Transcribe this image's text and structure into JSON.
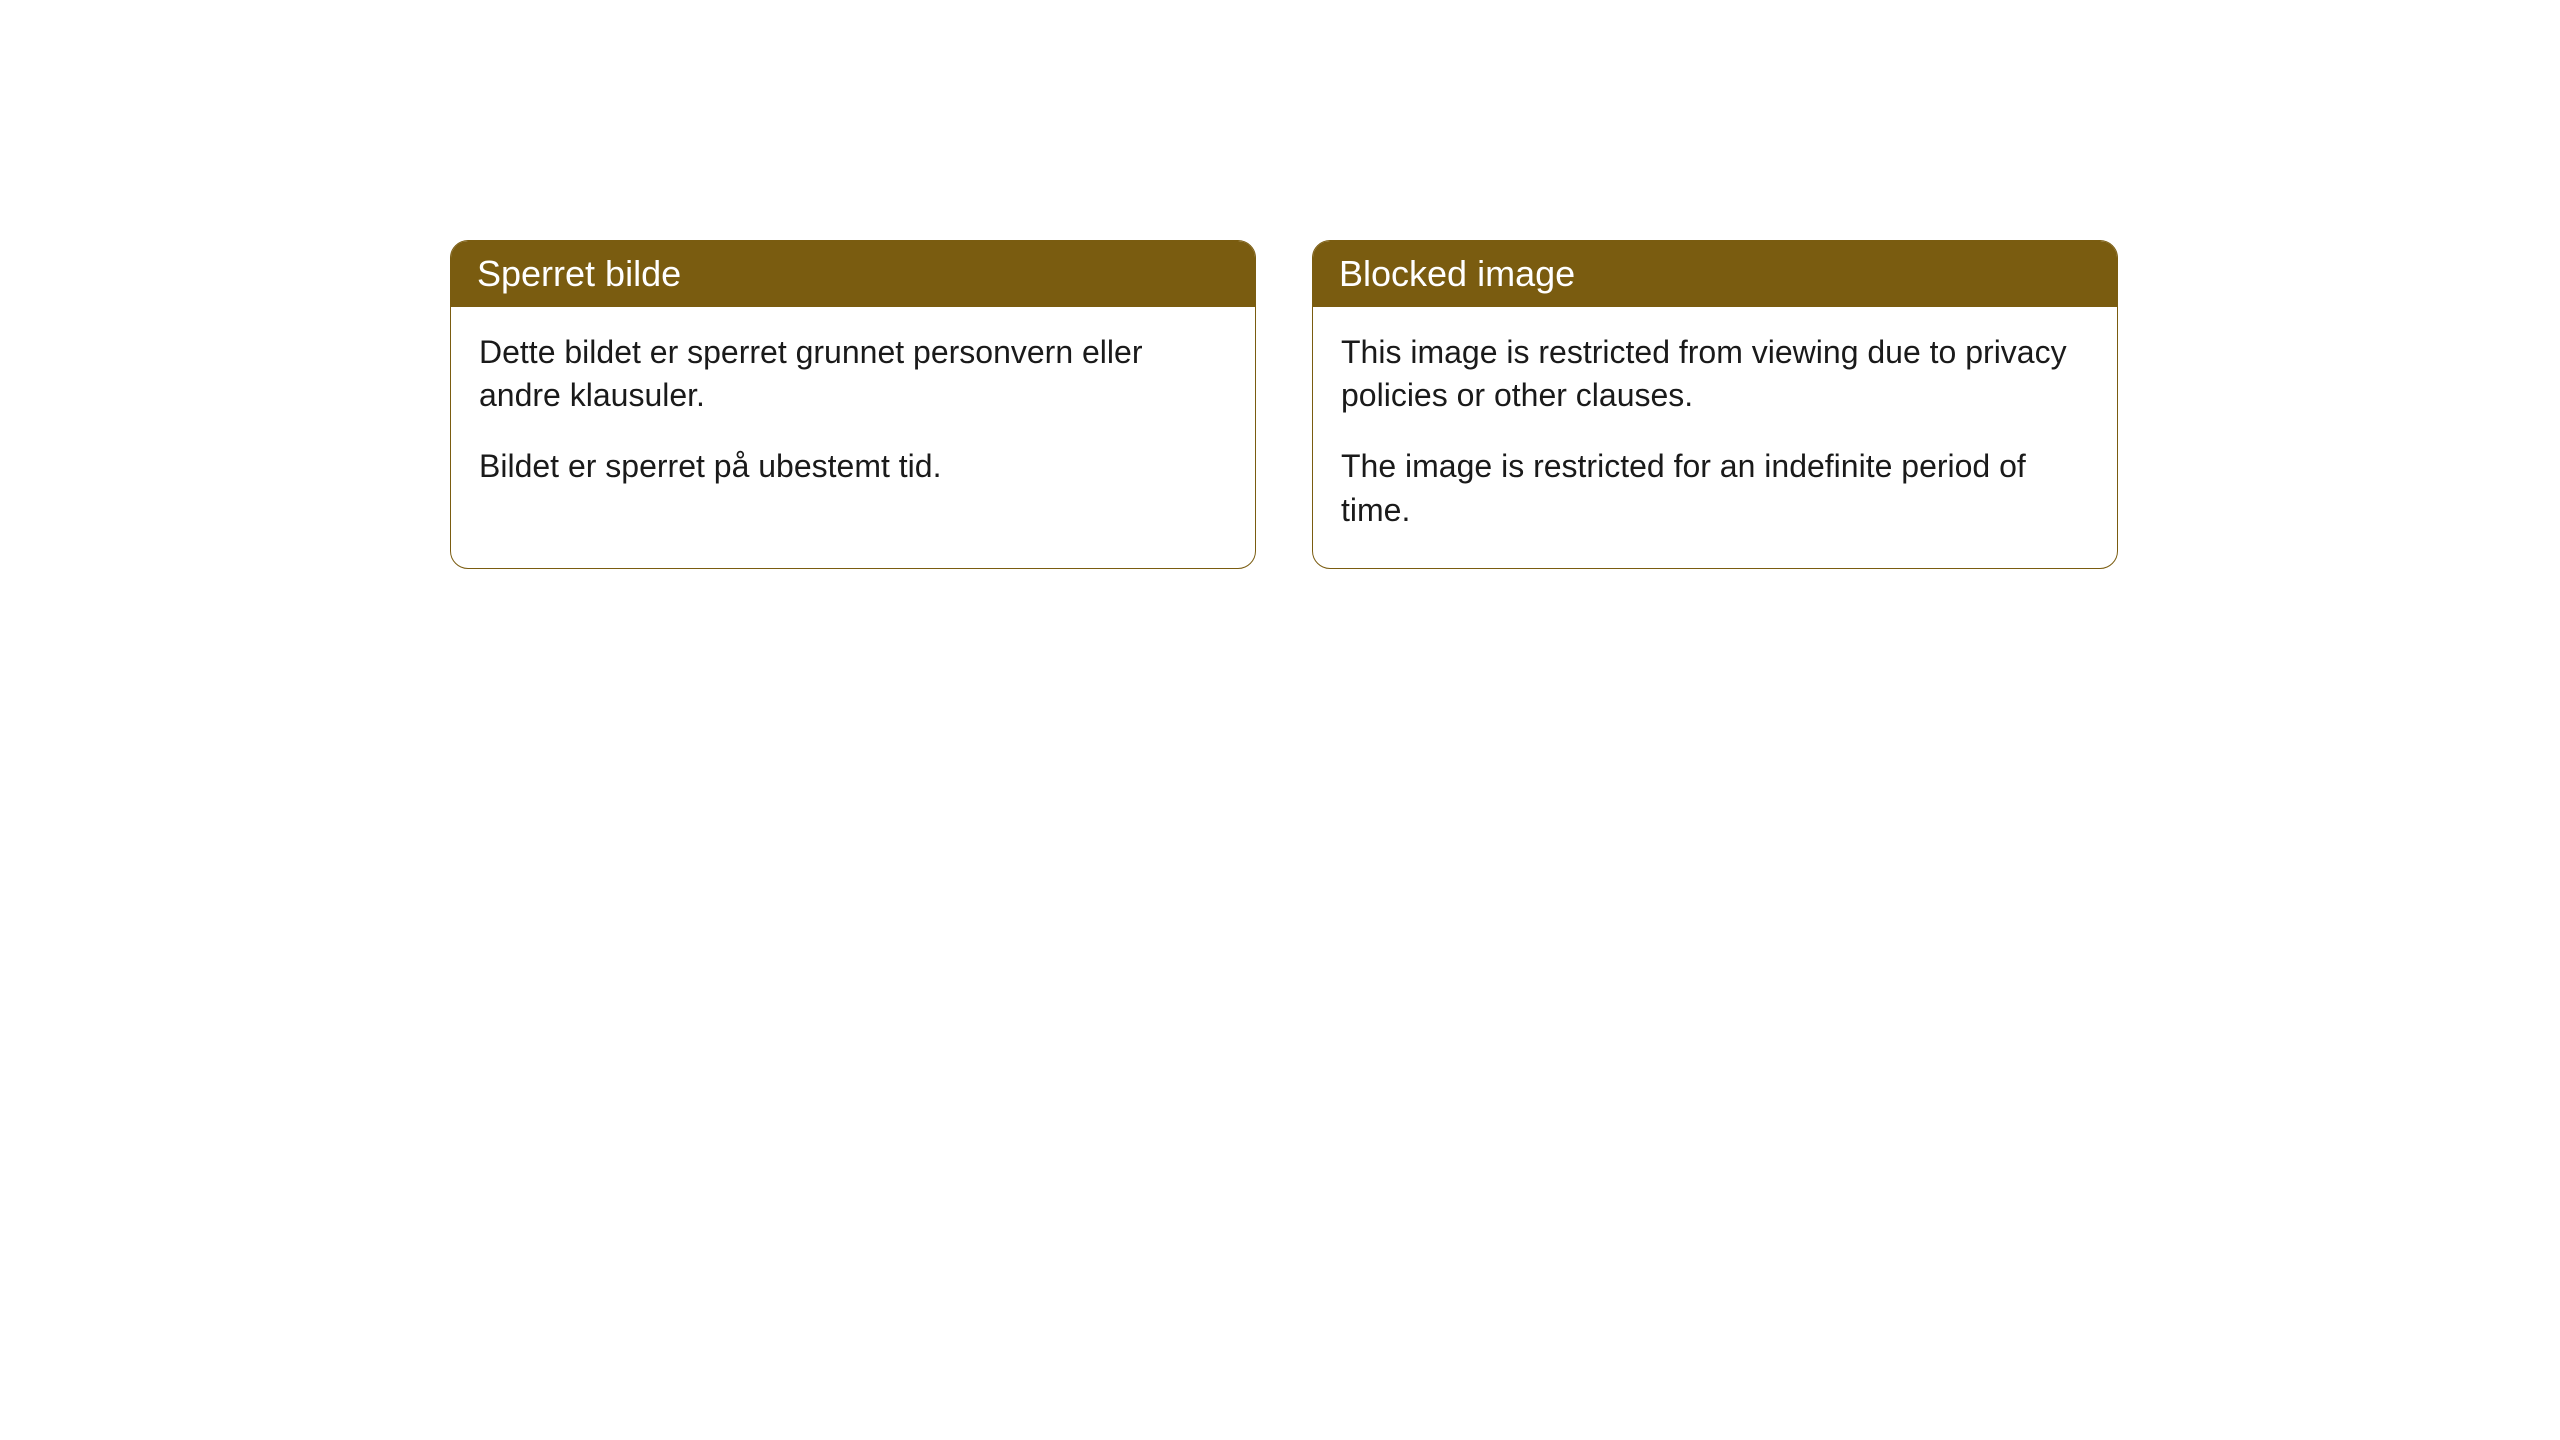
{
  "cards": [
    {
      "title": "Sperret bilde",
      "paragraph1": "Dette bildet er sperret grunnet personvern eller andre klausuler.",
      "paragraph2": "Bildet er sperret på ubestemt tid."
    },
    {
      "title": "Blocked image",
      "paragraph1": "This image is restricted from viewing due to privacy policies or other clauses.",
      "paragraph2": "The image is restricted for an indefinite period of time."
    }
  ],
  "styling": {
    "header_background_color": "#7a5c10",
    "header_text_color": "#ffffff",
    "card_border_color": "#7a5c10",
    "card_background_color": "#ffffff",
    "body_text_color": "#1a1a1a",
    "page_background_color": "#ffffff",
    "header_fontsize": 36,
    "body_fontsize": 32,
    "border_radius": 18
  }
}
